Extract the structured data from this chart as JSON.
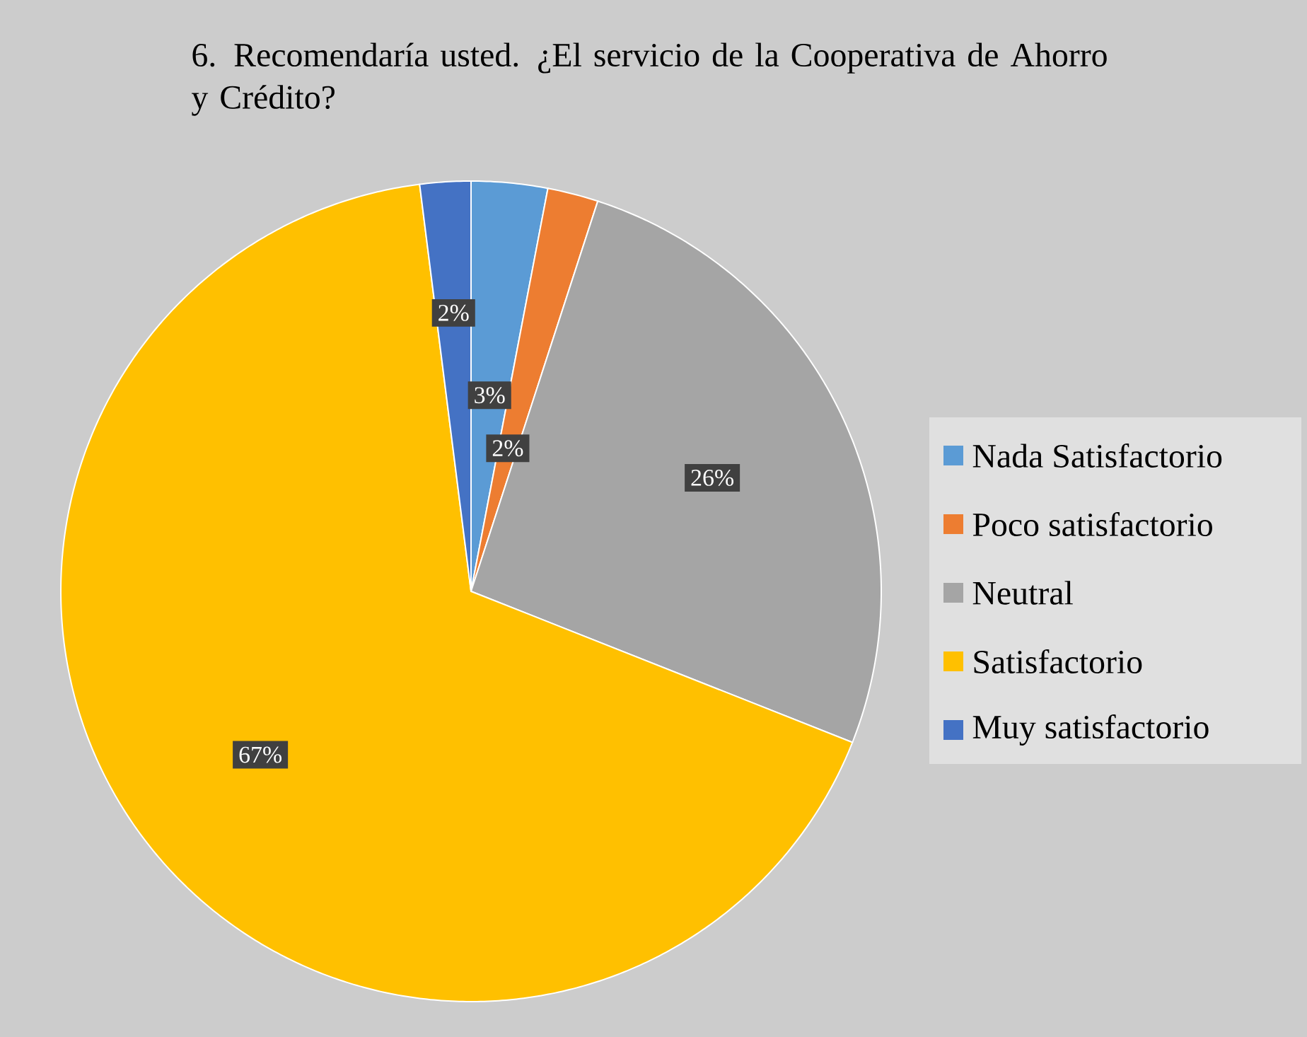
{
  "chart_data": {
    "type": "pie",
    "title": "6. Recomendaría usted. ¿El servicio de la Cooperativa de Ahorro y Crédito?",
    "categories": [
      "Nada Satisfactorio",
      "Poco satisfactorio",
      "Neutral",
      "Satisfactorio",
      "Muy satisfactorio"
    ],
    "values": [
      3,
      2,
      26,
      67,
      2
    ],
    "colors": [
      "#5b9bd5",
      "#ed7d31",
      "#a5a5a5",
      "#ffc000",
      "#4472c4"
    ],
    "value_labels": [
      "3%",
      "2%",
      "26%",
      "67%",
      "2%"
    ],
    "legend": "right"
  }
}
